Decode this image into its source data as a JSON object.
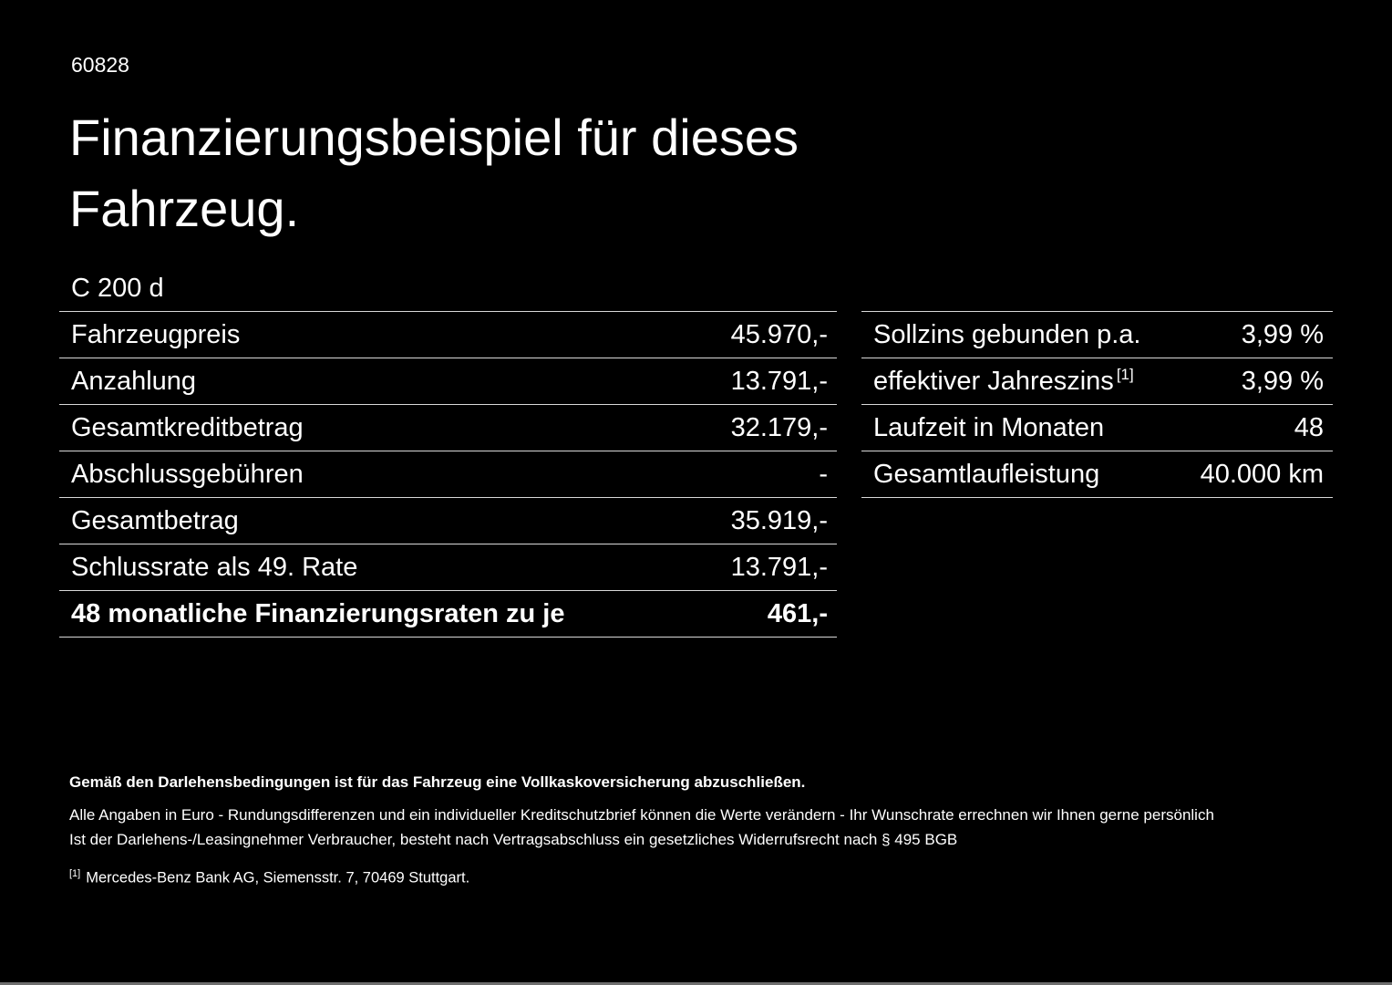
{
  "header": {
    "doc_id": "60828",
    "title_lines": [
      "Finanzierungsbeispiel für dieses",
      "Fahrzeug."
    ],
    "model": "C 200 d"
  },
  "financing_table": {
    "rows": [
      {
        "label": "Fahrzeugpreis",
        "value": "45.970,-"
      },
      {
        "label": "Anzahlung",
        "value": "13.791,-"
      },
      {
        "label": "Gesamtkreditbetrag",
        "value": "32.179,-"
      },
      {
        "label": "Abschlussgebühren",
        "value": "-"
      },
      {
        "label": "Gesamtbetrag",
        "value": "35.919,-"
      },
      {
        "label": "Schlussrate als 49. Rate",
        "value": "13.791,-"
      },
      {
        "label": "48 monatliche Finanzierungsraten zu je",
        "value": "461,-"
      }
    ]
  },
  "conditions_table": {
    "rows": [
      {
        "label": "Sollzins gebunden p.a.",
        "sup": "",
        "value": "3,99 %"
      },
      {
        "label": "effektiver Jahreszins",
        "sup": "[1]",
        "value": "3,99 %"
      },
      {
        "label": "Laufzeit in Monaten",
        "sup": "",
        "value": "48"
      },
      {
        "label": "Gesamtlaufleistung",
        "sup": "",
        "value": "40.000 km"
      }
    ]
  },
  "footer": {
    "insurance_note": "Gemäß den Darlehensbedingungen ist für das Fahrzeug eine Vollkaskoversicherung abzuschließen.",
    "note_euro": "Alle Angaben in Euro - Rundungsdifferenzen und ein individueller Kreditschutzbrief können die Werte verändern - Ihr Wunschrate errechnen wir Ihnen gerne persönlich",
    "note_widerruf": "Ist der Darlehens-/Leasingnehmer Verbraucher, besteht nach Vertragsabschluss ein gesetzliches Widerrufsrecht nach § 495 BGB",
    "footnote_marker": "[1]",
    "footnote_text": "Mercedes-Benz Bank AG, Siemensstr. 7, 70469 Stuttgart."
  },
  "colors": {
    "background": "#000000",
    "text": "#ffffff",
    "divider": "#d8d8d8"
  }
}
